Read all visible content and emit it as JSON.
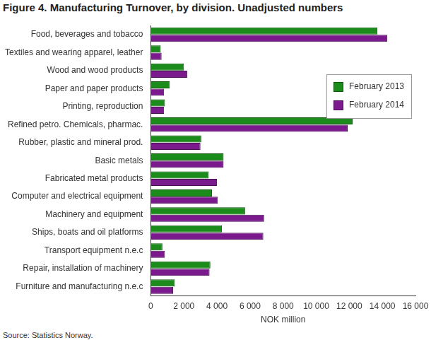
{
  "chart_data": {
    "type": "bar",
    "orientation": "horizontal",
    "title": "Figure 4. Manufacturing Turnover, by division. Unadjusted numbers",
    "source": "Source: Statistics Norway.",
    "x_label": "NOK million",
    "categories": [
      "Food, beverages and tobacco",
      "Textiles and wearing apparel, leather",
      "Wood and wood products",
      "Paper and paper products",
      "Printing, reproduction",
      "Refined petro. Chemicals, pharmac.",
      "Rubber, plastic and mineral prod.",
      "Basic metals",
      "Fabricated metal products",
      "Computer and electrical equipment",
      "Machinery and equipment",
      "Ships, boats and oil platforms",
      "Transport equipment n.e.c",
      "Repair, installation of machinery",
      "Furniture and manufacturing n.e.c"
    ],
    "series": [
      {
        "name": "February 2013",
        "color": "#1b8c1b",
        "values": [
          13700,
          600,
          2000,
          1150,
          850,
          12200,
          3050,
          4400,
          3500,
          3700,
          5700,
          4300,
          700,
          3600,
          1450
        ]
      },
      {
        "name": "February 2014",
        "color": "#7b1a8c",
        "values": [
          14300,
          650,
          2200,
          800,
          800,
          11900,
          3000,
          4400,
          4000,
          4050,
          6850,
          6800,
          850,
          3550,
          1350
        ]
      }
    ],
    "xlim": [
      0,
      16000
    ],
    "xticks": [
      0,
      {
        "value": 2000,
        "label": "2 000"
      },
      {
        "value": 4000,
        "label": "4 000"
      },
      {
        "value": 6000,
        "label": "6 000"
      },
      {
        "value": 8000,
        "label": "8 000"
      },
      {
        "value": 10000,
        "label": "10 000"
      },
      {
        "value": 12000,
        "label": "12 000"
      },
      {
        "value": 14000,
        "label": "14 000"
      },
      {
        "value": 16000,
        "label": "16 000"
      }
    ],
    "grid": false,
    "legend": "upper right"
  }
}
